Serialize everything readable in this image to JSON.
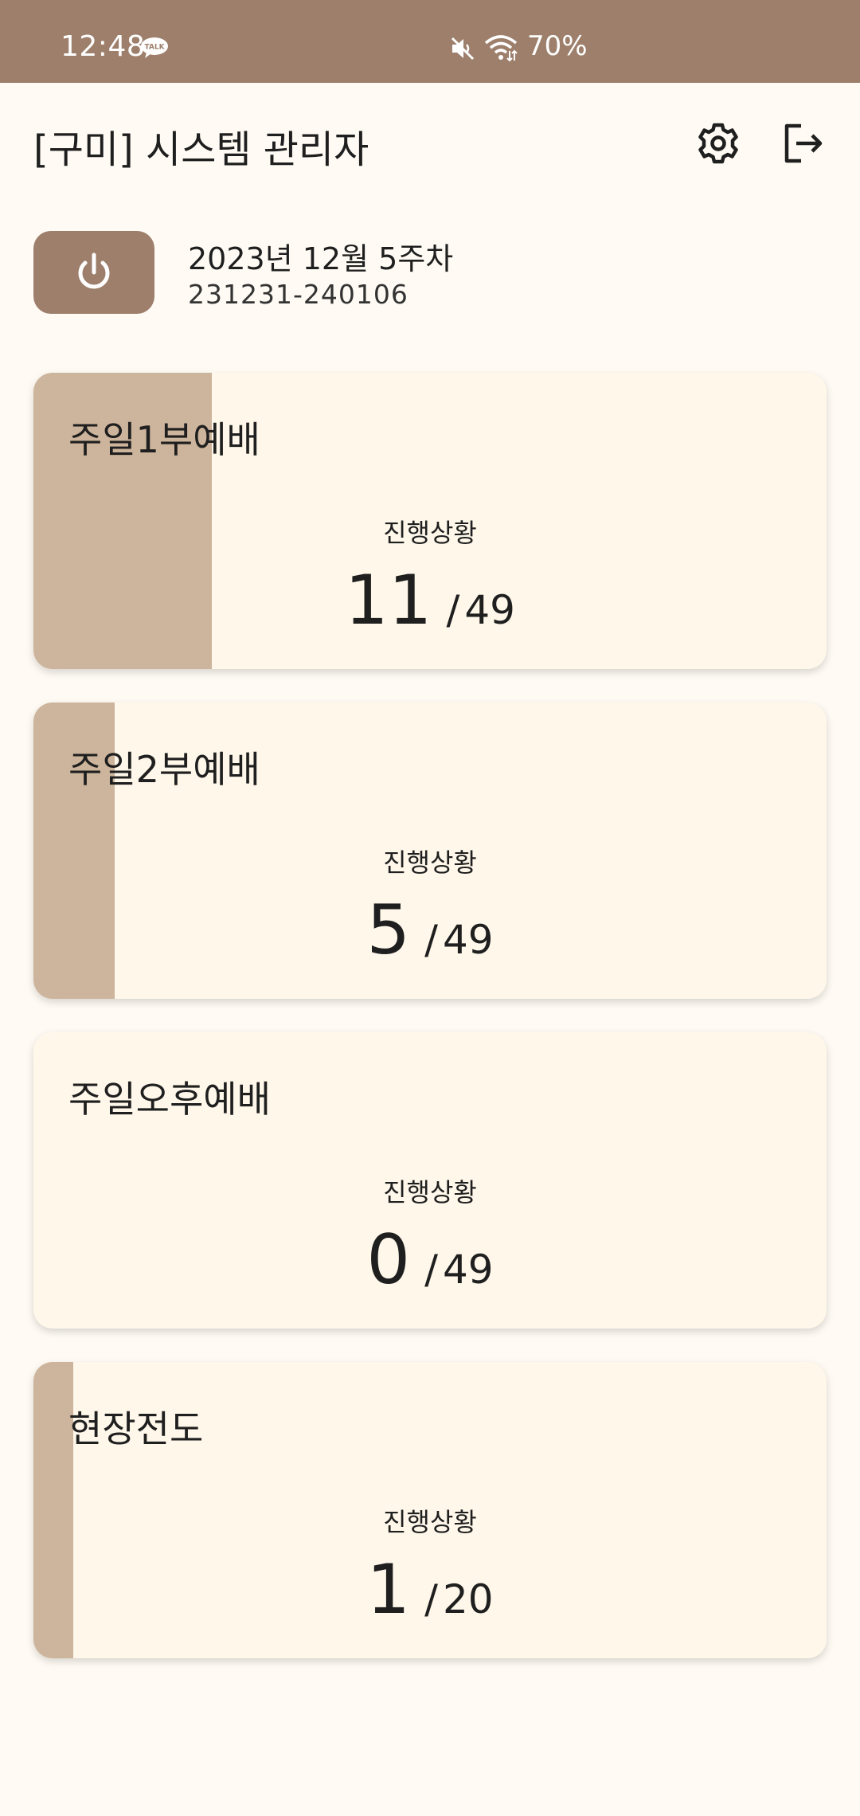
{
  "status_bar": {
    "time": "12:48",
    "battery": "70%",
    "icons": [
      "kakaotalk-icon",
      "mute-icon",
      "wifi-icon"
    ],
    "background": "#9D7F6B"
  },
  "header": {
    "title": "[구미] 시스템 관리자",
    "icons": [
      "gear-icon",
      "logout-icon"
    ]
  },
  "week": {
    "label": "2023년 12월 5주차",
    "range": "231231-240106"
  },
  "colors": {
    "accent": "#9D7F6B",
    "progress_fill": "#CDB49C",
    "card_bg": "#FEF7EA",
    "page_bg": "#FFFBF4"
  },
  "cards": [
    {
      "title": "주일1부예배",
      "status_label": "진행상황",
      "done": "11",
      "separator": "/",
      "total": "49",
      "progress": 0.2245
    },
    {
      "title": "주일2부예배",
      "status_label": "진행상황",
      "done": "5",
      "separator": "/",
      "total": "49",
      "progress": 0.102
    },
    {
      "title": "주일오후예배",
      "status_label": "진행상황",
      "done": "0",
      "separator": "/",
      "total": "49",
      "progress": 0
    },
    {
      "title": "현장전도",
      "status_label": "진행상황",
      "done": "1",
      "separator": "/",
      "total": "20",
      "progress": 0.05
    }
  ]
}
